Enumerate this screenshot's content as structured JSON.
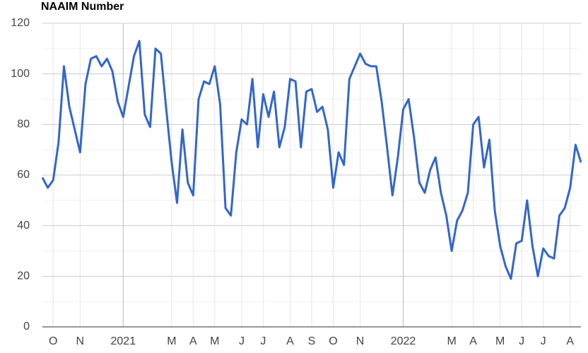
{
  "chart_data": {
    "type": "line",
    "title": "NAAIM Number",
    "categories": [
      null,
      null,
      "O",
      null,
      null,
      null,
      null,
      "N",
      null,
      null,
      null,
      null,
      null,
      null,
      null,
      "2021",
      null,
      null,
      null,
      null,
      null,
      null,
      null,
      null,
      "M",
      null,
      null,
      null,
      "A",
      null,
      null,
      null,
      "M",
      null,
      null,
      null,
      null,
      "J",
      null,
      null,
      null,
      "J",
      null,
      null,
      null,
      null,
      "A",
      null,
      null,
      null,
      "S",
      null,
      null,
      null,
      "O",
      null,
      null,
      null,
      null,
      "N",
      null,
      null,
      null,
      null,
      null,
      null,
      null,
      "2022",
      null,
      null,
      null,
      null,
      null,
      null,
      null,
      null,
      "M",
      null,
      null,
      null,
      "A",
      null,
      null,
      null,
      null,
      "M",
      null,
      null,
      null,
      "J",
      null,
      null,
      null,
      "J",
      null,
      null,
      null,
      null,
      "A",
      null,
      null
    ],
    "series": [
      {
        "name": "NAAIM Number",
        "color": "#3366cc",
        "values": [
          59,
          55,
          58,
          73,
          103,
          87,
          78,
          69,
          96,
          106,
          107,
          103,
          106,
          101,
          89,
          83,
          95,
          107,
          113,
          84,
          79,
          110,
          108,
          86,
          65,
          49,
          78,
          57,
          52,
          90,
          97,
          96,
          103,
          88,
          47,
          44,
          69,
          82,
          80,
          98,
          71,
          92,
          83,
          93,
          71,
          79,
          98,
          97,
          71,
          93,
          94,
          85,
          87,
          78,
          55,
          69,
          64,
          98,
          103,
          108,
          104,
          103,
          103,
          89,
          71,
          52,
          67,
          86,
          90,
          75,
          57,
          53,
          62,
          67,
          53,
          44,
          30,
          42,
          46,
          53,
          80,
          83,
          63,
          74,
          46,
          32,
          24,
          19,
          33,
          34,
          50,
          32,
          20,
          31,
          28,
          27,
          44,
          47,
          55,
          72,
          65
        ]
      }
    ],
    "ylim": [
      0,
      120
    ],
    "yticks": [
      0,
      20,
      40,
      60,
      80,
      100,
      120
    ],
    "grid": true
  }
}
